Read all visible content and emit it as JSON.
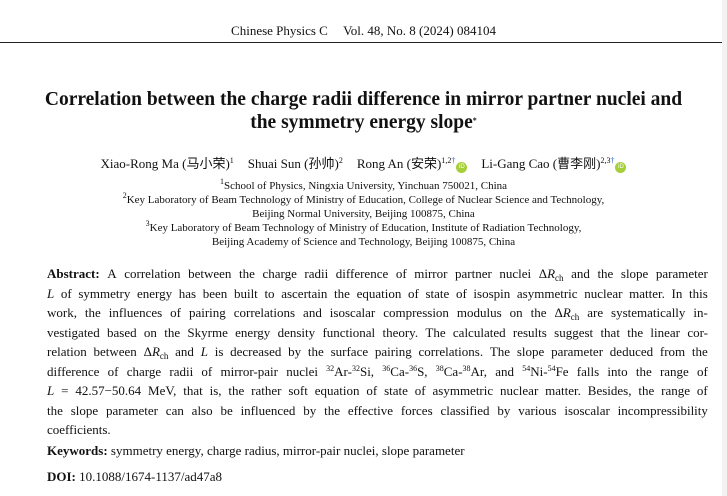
{
  "header": {
    "journal": "Chinese Physics C",
    "issue": "Vol. 48, No. 8 (2024) 084104"
  },
  "title": {
    "line1": "Correlation between the charge radii difference in mirror partner nuclei and",
    "line2": "the symmetry energy slope",
    "mark": "*"
  },
  "authors": [
    {
      "name": "Xiao-Rong Ma (马小荣)",
      "sup": "1",
      "orcid": false
    },
    {
      "name": "Shuai Sun (孙帅)",
      "sup": "2",
      "orcid": false
    },
    {
      "name": "Rong An (安荣)",
      "sup": "1,2",
      "dagger": "†",
      "orcid": true
    },
    {
      "name": "Li-Gang Cao (曹李刚)",
      "sup": "2,3",
      "dagger": "†",
      "orcid": true
    }
  ],
  "orcid_label": "iD",
  "affiliations": [
    {
      "sup": "1",
      "text": "School of Physics, Ningxia University, Yinchuan 750021, China"
    },
    {
      "sup": "2",
      "text": "Key Laboratory of Beam Technology of Ministry of Education, College of Nuclear Science and Technology,"
    },
    {
      "sup": "",
      "text": "Beijing Normal University, Beijing 100875, China"
    },
    {
      "sup": "3",
      "text": "Key Laboratory of Beam Technology of Ministry of Education, Institute of Radiation Technology,"
    },
    {
      "sup": "",
      "text": "Beijing Academy of Science and Technology, Beijing 100875, China"
    }
  ],
  "abstract": {
    "lines": [
      [
        [
          "Abstract:",
          "b"
        ],
        [
          " A correlation between the charge radii difference of mirror partner nuclei Δ",
          ""
        ],
        [
          "R",
          "i"
        ],
        [
          "ch",
          "sub"
        ],
        [
          " and the slope parameter",
          ""
        ]
      ],
      [
        [
          "L",
          "i"
        ],
        [
          " of symmetry energy has been built to ascertain the equation of state of isospin asymmetric nuclear matter. In this",
          ""
        ]
      ],
      [
        [
          "work, the influences of pairing correlations and isoscalar compression modulus on the Δ",
          ""
        ],
        [
          "R",
          "i"
        ],
        [
          "ch",
          "sub"
        ],
        [
          " are systematically in-",
          ""
        ]
      ],
      [
        [
          "vestigated based on the Skyrme energy density functional theory. The calculated results suggest that the linear cor-",
          ""
        ]
      ],
      [
        [
          "relation between Δ",
          ""
        ],
        [
          "R",
          "i"
        ],
        [
          "ch",
          "sub"
        ],
        [
          " and ",
          ""
        ],
        [
          "L",
          "i"
        ],
        [
          " is decreased by the surface pairing correlations. The slope parameter deduced from the",
          ""
        ]
      ],
      [
        [
          "difference of charge radii of mirror-pair nuclei ",
          ""
        ],
        [
          "32",
          "sup"
        ],
        [
          "Ar-",
          ""
        ],
        [
          "32",
          "sup"
        ],
        [
          "Si, ",
          ""
        ],
        [
          "36",
          "sup"
        ],
        [
          "Ca-",
          ""
        ],
        [
          "36",
          "sup"
        ],
        [
          "S, ",
          ""
        ],
        [
          "38",
          "sup"
        ],
        [
          "Ca-",
          ""
        ],
        [
          "38",
          "sup"
        ],
        [
          "Ar, and ",
          ""
        ],
        [
          "54",
          "sup"
        ],
        [
          "Ni-",
          ""
        ],
        [
          "54",
          "sup"
        ],
        [
          "Fe falls into the range of",
          ""
        ]
      ],
      [
        [
          "L",
          "i"
        ],
        [
          " = 42.57−50.64 MeV, that is, the rather soft equation of state of asymmetric nuclear matter. Besides, the range of",
          ""
        ]
      ],
      [
        [
          "the slope parameter can also be influenced by the effective forces classified by various isoscalar incompressibility",
          ""
        ]
      ],
      [
        [
          "coefficients.",
          ""
        ]
      ]
    ]
  },
  "keywords": {
    "label": "Keywords:",
    "text": " symmetry energy, charge radius, mirror-pair nuclei, slope parameter"
  },
  "doi": {
    "label": "DOI:",
    "text": " 10.1088/1674-1137/ad47a8"
  }
}
